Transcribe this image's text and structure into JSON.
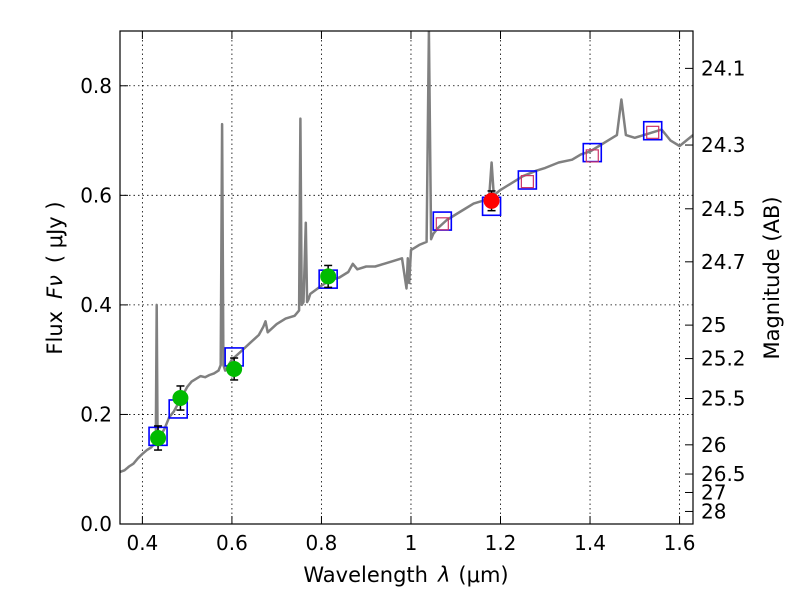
{
  "chart_data": {
    "type": "scatter",
    "xlabel_text": "Wavelength",
    "xlabel_symbol": "λ",
    "xlabel_unit": "(μm)",
    "ylabel_text": "Flux",
    "ylabel_symbol": "Fν",
    "ylabel_unit": "( μJy )",
    "y2label": "Magnitude (AB)",
    "xlim": [
      0.35,
      1.63
    ],
    "ylim": [
      0.0,
      0.9
    ],
    "grid": true,
    "grid_style": "dotted",
    "x_ticks": [
      0.4,
      0.6,
      0.8,
      1.0,
      1.2,
      1.4,
      1.6
    ],
    "x_tick_labels": [
      "0.4",
      "0.6",
      "0.8",
      "1",
      "1.2",
      "1.4",
      "1.6"
    ],
    "y_ticks": [
      0.0,
      0.2,
      0.4,
      0.6,
      0.8
    ],
    "y_tick_labels": [
      "0.0",
      "0.2",
      "0.4",
      "0.6",
      "0.8"
    ],
    "magnitude_ticks": [
      "24.1",
      "24.3",
      "24.5",
      "24.7",
      "25",
      "25.2",
      "25.5",
      "26",
      "26.5",
      "27",
      "28"
    ],
    "colors": {
      "sed_line": "#808080",
      "model_box": "#0000ff",
      "sed_box_inner": "#cc3366",
      "optical_point": "#00bb00",
      "nir_point": "#ff0000",
      "errorbar": "#000000"
    },
    "sed_model": {
      "x": [
        0.35,
        0.36,
        0.37,
        0.38,
        0.39,
        0.4,
        0.41,
        0.42,
        0.425,
        0.43,
        0.432,
        0.434,
        0.436,
        0.44,
        0.45,
        0.46,
        0.47,
        0.48,
        0.49,
        0.5,
        0.51,
        0.52,
        0.53,
        0.54,
        0.55,
        0.56,
        0.57,
        0.575,
        0.578,
        0.581,
        0.585,
        0.6,
        0.62,
        0.64,
        0.66,
        0.67,
        0.675,
        0.68,
        0.7,
        0.72,
        0.74,
        0.75,
        0.753,
        0.756,
        0.76,
        0.765,
        0.768,
        0.771,
        0.775,
        0.8,
        0.82,
        0.84,
        0.86,
        0.87,
        0.88,
        0.9,
        0.92,
        0.94,
        0.96,
        0.98,
        0.99,
        0.993,
        0.996,
        1.0,
        1.02,
        1.035,
        1.04,
        1.045,
        1.05,
        1.06,
        1.08,
        1.1,
        1.12,
        1.14,
        1.16,
        1.175,
        1.18,
        1.185,
        1.2,
        1.22,
        1.25,
        1.28,
        1.3,
        1.33,
        1.36,
        1.38,
        1.4,
        1.42,
        1.44,
        1.46,
        1.47,
        1.48,
        1.5,
        1.52,
        1.54,
        1.56,
        1.58,
        1.6,
        1.63
      ],
      "y": [
        0.095,
        0.098,
        0.105,
        0.11,
        0.12,
        0.128,
        0.135,
        0.14,
        0.145,
        0.15,
        0.4,
        0.15,
        0.155,
        0.16,
        0.175,
        0.195,
        0.205,
        0.22,
        0.235,
        0.25,
        0.26,
        0.265,
        0.27,
        0.268,
        0.272,
        0.275,
        0.28,
        0.29,
        0.73,
        0.29,
        0.28,
        0.3,
        0.315,
        0.33,
        0.345,
        0.36,
        0.37,
        0.35,
        0.365,
        0.375,
        0.38,
        0.39,
        0.74,
        0.4,
        0.405,
        0.55,
        0.405,
        0.41,
        0.42,
        0.435,
        0.445,
        0.45,
        0.46,
        0.475,
        0.465,
        0.47,
        0.47,
        0.475,
        0.48,
        0.485,
        0.43,
        0.485,
        0.44,
        0.5,
        0.51,
        0.515,
        0.9,
        0.52,
        0.53,
        0.54,
        0.555,
        0.565,
        0.575,
        0.585,
        0.59,
        0.6,
        0.66,
        0.6,
        0.61,
        0.62,
        0.635,
        0.645,
        0.65,
        0.66,
        0.665,
        0.675,
        0.68,
        0.69,
        0.7,
        0.71,
        0.775,
        0.71,
        0.705,
        0.71,
        0.715,
        0.72,
        0.7,
        0.69,
        0.71
      ]
    },
    "model_boxes": [
      {
        "x": 0.435,
        "y": 0.16
      },
      {
        "x": 0.48,
        "y": 0.21
      },
      {
        "x": 0.605,
        "y": 0.305
      },
      {
        "x": 0.815,
        "y": 0.447
      },
      {
        "x": 1.07,
        "y": 0.553
      },
      {
        "x": 1.18,
        "y": 0.58
      },
      {
        "x": 1.26,
        "y": 0.628
      },
      {
        "x": 1.405,
        "y": 0.678
      },
      {
        "x": 1.54,
        "y": 0.718
      }
    ],
    "sed_boxes": [
      {
        "x": 1.07,
        "y": 0.548
      },
      {
        "x": 1.26,
        "y": 0.625
      },
      {
        "x": 1.405,
        "y": 0.672
      },
      {
        "x": 1.54,
        "y": 0.715
      }
    ],
    "optical_points": [
      {
        "x": 0.435,
        "y": 0.157,
        "err": 0.022
      },
      {
        "x": 0.485,
        "y": 0.23,
        "err": 0.022
      },
      {
        "x": 0.605,
        "y": 0.283,
        "err": 0.02
      },
      {
        "x": 0.815,
        "y": 0.452,
        "err": 0.02
      }
    ],
    "nir_points": [
      {
        "x": 1.18,
        "y": 0.59,
        "err": 0.018
      }
    ]
  }
}
